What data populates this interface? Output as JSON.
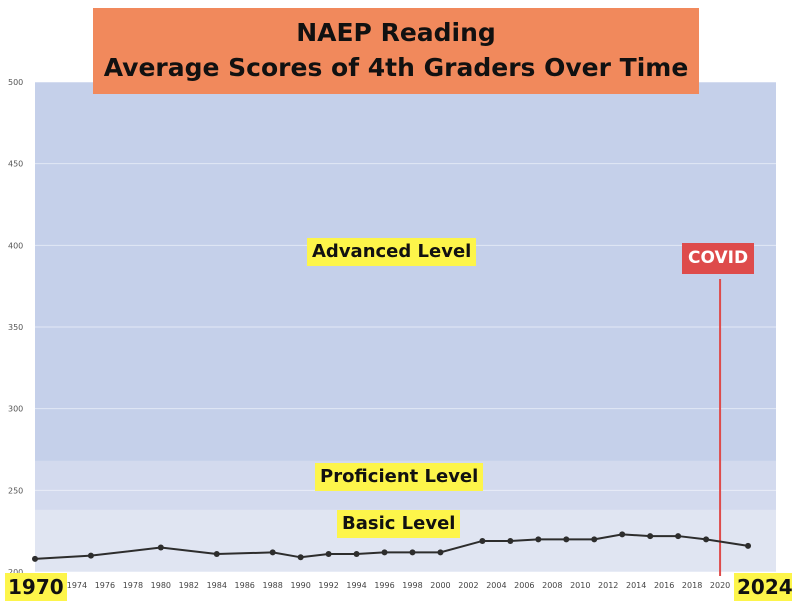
{
  "title_line1": "NAEP Reading",
  "title_line2": "Average Scores of 4th Graders Over Time",
  "bands": {
    "advanced": "Advanced Level",
    "proficient": "Proficient Level",
    "basic": "Basic Level"
  },
  "covid_label": "COVID",
  "edge_start": "1970",
  "edge_end": "2024",
  "colors": {
    "title_bg": "#f1895c",
    "advanced": "#c5d0ea",
    "proficient": "#d3daee",
    "basic": "#e0e5f2",
    "line": "#2d2d2d",
    "covid": "#de4b4b",
    "highlight": "#fdf54a"
  },
  "chart_data": {
    "type": "line",
    "ylim": [
      200,
      500
    ],
    "xlim": [
      1971,
      2024
    ],
    "yticks": [
      200,
      250,
      300,
      350,
      400,
      450,
      500
    ],
    "xtick_labels": [
      "72",
      "1974",
      "1976",
      "1978",
      "1980",
      "1982",
      "1984",
      "1986",
      "1988",
      "1990",
      "1992",
      "1994",
      "1996",
      "1998",
      "2000",
      "2002",
      "2004",
      "2006",
      "2008",
      "2010",
      "2012",
      "2014",
      "2016",
      "2018",
      "2020",
      "2022"
    ],
    "bands": [
      {
        "name": "Basic Level",
        "from": 200,
        "to": 238
      },
      {
        "name": "Proficient Level",
        "from": 238,
        "to": 268
      },
      {
        "name": "Advanced Level",
        "from": 268,
        "to": 500
      }
    ],
    "covid_year": 2020,
    "x": [
      1971,
      1975,
      1980,
      1984,
      1988,
      1990,
      1992,
      1994,
      1996,
      1998,
      2000,
      2003,
      2005,
      2007,
      2009,
      2011,
      2013,
      2015,
      2017,
      2019,
      2022
    ],
    "y": [
      208,
      210,
      215,
      211,
      212,
      209,
      211,
      211,
      212,
      212,
      212,
      219,
      219,
      220,
      220,
      220,
      223,
      222,
      222,
      220,
      216
    ]
  }
}
